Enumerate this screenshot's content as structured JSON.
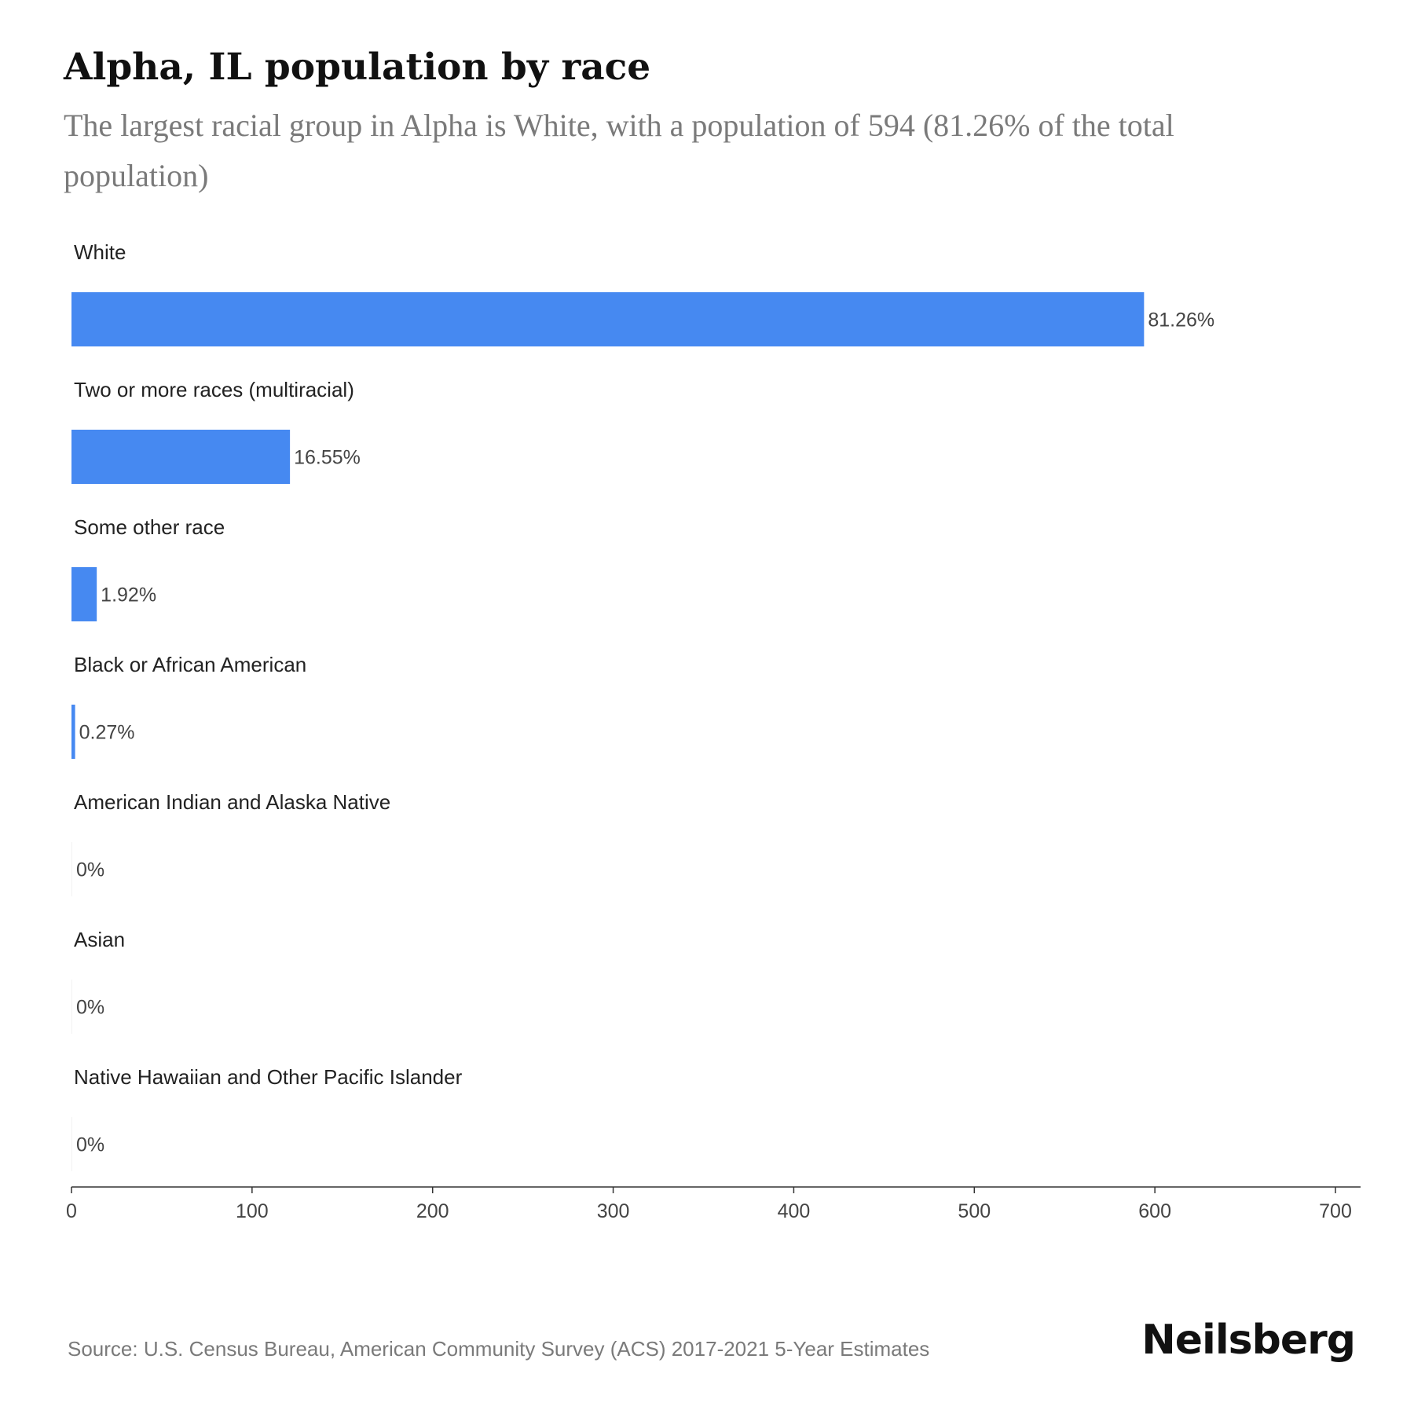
{
  "header": {
    "title": "Alpha, IL population by race",
    "subtitle": "The largest racial group in Alpha is White, with a population of 594 (81.26% of the total population)"
  },
  "chart_data": {
    "type": "bar",
    "orientation": "horizontal",
    "title": "Alpha, IL population by race",
    "subtitle": "The largest racial group in Alpha is White, with a population of 594 (81.26% of the total population)",
    "categories": [
      "White",
      "Two or more races (multiracial)",
      "Some other race",
      "Black or African American",
      "American Indian and Alaska Native",
      "Asian",
      "Native Hawaiian and Other Pacific Islander"
    ],
    "values": [
      594,
      121,
      14,
      2,
      0,
      0,
      0
    ],
    "value_labels": [
      "81.26%",
      "16.55%",
      "1.92%",
      "0.27%",
      "0%",
      "0%",
      "0%"
    ],
    "xlim": [
      0,
      700
    ],
    "x_ticks": [
      0,
      100,
      200,
      300,
      400,
      500,
      600,
      700
    ],
    "xlabel": "",
    "ylabel": "",
    "grid": false,
    "bar_color": "#4689f1"
  },
  "footer": {
    "source": "Source: U.S. Census Bureau, American Community Survey (ACS) 2017-2021 5-Year Estimates",
    "logo_text": "Neilsberg"
  }
}
